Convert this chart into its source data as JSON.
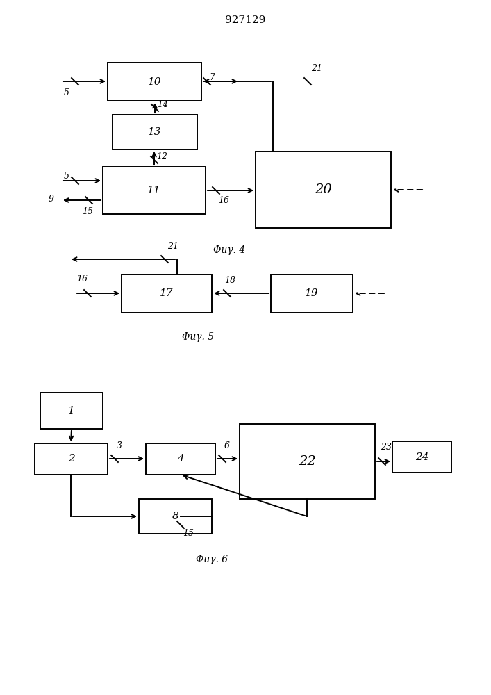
{
  "title": "927129",
  "fig4_caption": "Φиγ. 4",
  "fig5_caption": "Φиγ. 5",
  "fig6_caption": "Φиγ. 6",
  "bg_color": "#ffffff",
  "line_color": "#000000"
}
